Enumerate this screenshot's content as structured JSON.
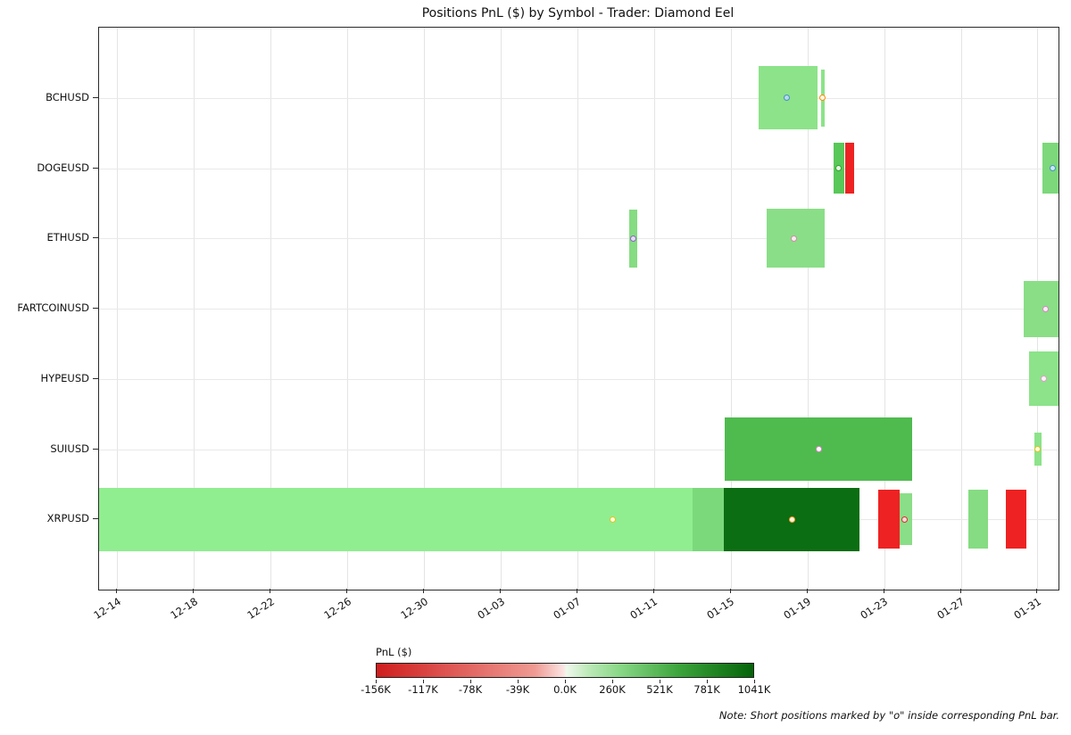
{
  "chart_data": {
    "type": "gantt",
    "title": "Positions PnL ($) by Symbol - Trader: Diamond Eel",
    "note": "Note: Short positions marked by \"o\" inside corresponding PnL bar.",
    "day_zero_label": "12-14",
    "x_range": [
      -0.95,
      49.1
    ],
    "x_ticks": [
      {
        "label": "12-14",
        "day": 0
      },
      {
        "label": "12-18",
        "day": 4
      },
      {
        "label": "12-22",
        "day": 8
      },
      {
        "label": "12-26",
        "day": 12
      },
      {
        "label": "12-30",
        "day": 16
      },
      {
        "label": "01-03",
        "day": 20
      },
      {
        "label": "01-07",
        "day": 24
      },
      {
        "label": "01-11",
        "day": 28
      },
      {
        "label": "01-15",
        "day": 32
      },
      {
        "label": "01-19",
        "day": 36
      },
      {
        "label": "01-23",
        "day": 40
      },
      {
        "label": "01-27",
        "day": 44
      },
      {
        "label": "01-31",
        "day": 48
      }
    ],
    "y_categories": [
      "BCHUSD",
      "DOGEUSD",
      "ETHUSD",
      "FARTCOINUSD",
      "HYPEUSD",
      "SUIUSD",
      "XRPUSD"
    ],
    "bars": [
      {
        "symbol": "BCHUSD",
        "row": 0,
        "start": 33.45,
        "end": 36.55,
        "color": "#8ce389",
        "thickness": 0.9
      },
      {
        "symbol": "BCHUSD",
        "row": 0,
        "start": 36.72,
        "end": 36.92,
        "color": "#8ce389",
        "thickness": 0.82
      },
      {
        "symbol": "DOGEUSD",
        "row": 1,
        "start": 37.35,
        "end": 37.95,
        "color": "#58c858",
        "thickness": 0.72
      },
      {
        "symbol": "DOGEUSD",
        "row": 1,
        "start": 37.95,
        "end": 38.42,
        "color": "#ee2222",
        "thickness": 0.72
      },
      {
        "symbol": "DOGEUSD",
        "row": 1,
        "start": 48.25,
        "end": 49.1,
        "color": "#7cd87a",
        "thickness": 0.72
      },
      {
        "symbol": "ETHUSD",
        "row": 2,
        "start": 26.7,
        "end": 27.12,
        "color": "#85dc82",
        "thickness": 0.82
      },
      {
        "symbol": "ETHUSD",
        "row": 2,
        "start": 33.85,
        "end": 36.92,
        "color": "#8ade87",
        "thickness": 0.84
      },
      {
        "symbol": "FARTCOINUSD",
        "row": 3,
        "start": 47.3,
        "end": 49.1,
        "color": "#89de86",
        "thickness": 0.8
      },
      {
        "symbol": "HYPEUSD",
        "row": 4,
        "start": 47.55,
        "end": 49.1,
        "color": "#8ce389",
        "thickness": 0.78
      },
      {
        "symbol": "SUIUSD",
        "row": 5,
        "start": 31.7,
        "end": 41.45,
        "color": "#4fbb4f",
        "thickness": 0.9
      },
      {
        "symbol": "SUIUSD",
        "row": 5,
        "start": 47.85,
        "end": 48.22,
        "color": "#8ce389",
        "thickness": 0.46
      },
      {
        "symbol": "XRPUSD",
        "row": 6,
        "start": -1.0,
        "end": 30.0,
        "color": "#90ee90",
        "thickness": 0.9
      },
      {
        "symbol": "XRPUSD",
        "row": 6,
        "start": 30.0,
        "end": 31.65,
        "color": "#7bd97b",
        "thickness": 0.9
      },
      {
        "symbol": "XRPUSD",
        "row": 6,
        "start": 31.65,
        "end": 38.7,
        "color": "#0b6e12",
        "thickness": 0.9
      },
      {
        "symbol": "XRPUSD",
        "row": 6,
        "start": 39.7,
        "end": 40.8,
        "color": "#ee2222",
        "thickness": 0.84
      },
      {
        "symbol": "XRPUSD",
        "row": 6,
        "start": 40.8,
        "end": 41.45,
        "color": "#8ade87",
        "thickness": 0.74
      },
      {
        "symbol": "XRPUSD",
        "row": 6,
        "start": 44.4,
        "end": 45.4,
        "color": "#85dc82",
        "thickness": 0.84
      },
      {
        "symbol": "XRPUSD",
        "row": 6,
        "start": 46.35,
        "end": 47.42,
        "color": "#ee2222",
        "thickness": 0.84
      }
    ],
    "markers": [
      {
        "symbol": "BCHUSD",
        "row": 0,
        "day": 34.9,
        "edge": "#4393c3",
        "fill": "#b8d9ee"
      },
      {
        "symbol": "BCHUSD",
        "row": 0,
        "day": 36.8,
        "edge": "#ff8c00",
        "fill": "#fff8ec"
      },
      {
        "symbol": "DOGEUSD",
        "row": 1,
        "day": 37.62,
        "edge": "#33a02c",
        "fill": "#eaf7e8"
      },
      {
        "symbol": "DOGEUSD",
        "row": 1,
        "day": 48.78,
        "edge": "#4393c3",
        "fill": "#cfe6f5"
      },
      {
        "symbol": "ETHUSD",
        "row": 2,
        "day": 26.9,
        "edge": "#8a63c0",
        "fill": "#e4dcf2"
      },
      {
        "symbol": "ETHUSD",
        "row": 2,
        "day": 35.3,
        "edge": "#cf8ca8",
        "fill": "#fbeef3"
      },
      {
        "symbol": "FARTCOINUSD",
        "row": 3,
        "day": 48.4,
        "edge": "#d886c6",
        "fill": "#fceef8"
      },
      {
        "symbol": "HYPEUSD",
        "row": 4,
        "day": 48.35,
        "edge": "#e09ccc",
        "fill": "#fdf3f9"
      },
      {
        "symbol": "SUIUSD",
        "row": 5,
        "day": 36.62,
        "edge": "#d886c6",
        "fill": "#ffffff"
      },
      {
        "symbol": "SUIUSD",
        "row": 5,
        "day": 48.02,
        "edge": "#e3c41c",
        "fill": "#fffbe2"
      },
      {
        "symbol": "XRPUSD",
        "row": 6,
        "day": 25.82,
        "edge": "#e3c41c",
        "fill": "#fffbe2"
      },
      {
        "symbol": "XRPUSD",
        "row": 6,
        "day": 35.18,
        "edge": "#ff9a2a",
        "fill": "#fff4e2"
      },
      {
        "symbol": "XRPUSD",
        "row": 6,
        "day": 41.08,
        "edge": "#d83030",
        "fill": "#ffdada"
      }
    ],
    "colorbar": {
      "label": "PnL ($)",
      "tick_labels": [
        "-156K",
        "-117K",
        "-78K",
        "-39K",
        "0.0K",
        "260K",
        "521K",
        "781K",
        "1041K"
      ],
      "min_value": -156000,
      "max_value": 1041000,
      "gradient": [
        "#cf1d1d",
        "#ef9a93",
        "#fbe3e1",
        "#eef8ec",
        "#bfe9ba",
        "#8cd98a",
        "#3da53c",
        "#046309"
      ]
    }
  }
}
